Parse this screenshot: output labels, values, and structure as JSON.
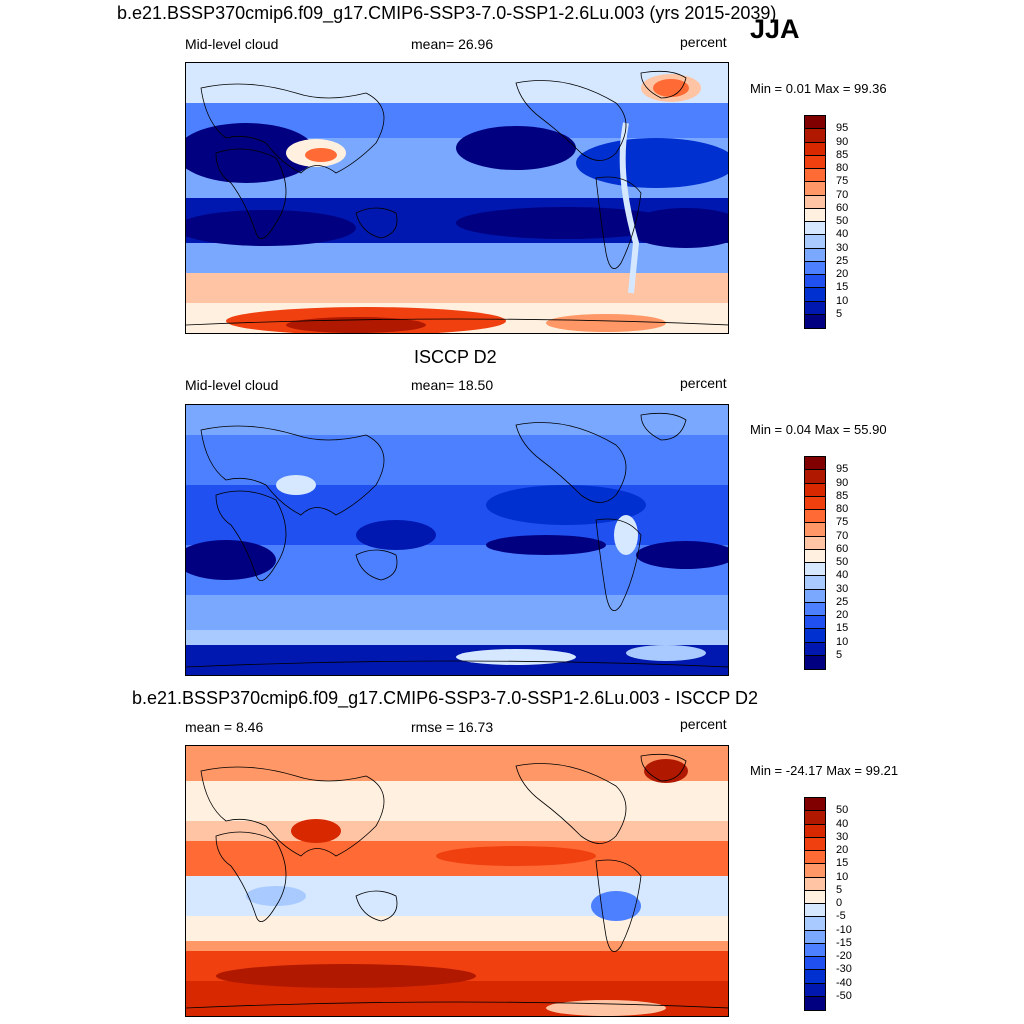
{
  "season": "JJA",
  "panels": [
    {
      "title": "b.e21.BSSP370cmip6.f09_g17.CMIP6-SSP3-7.0-SSP1-2.6Lu.003 (yrs 2015-2039)",
      "left_label": "Mid-level cloud",
      "center_label": "mean=  26.96",
      "right_label": "percent",
      "minmax": "Min =   0.01 Max =  99.36",
      "colorbar_labels": [
        "95",
        "90",
        "85",
        "80",
        "75",
        "70",
        "60",
        "50",
        "40",
        "30",
        "25",
        "20",
        "15",
        "10",
        "5"
      ],
      "colors": [
        "#800000",
        "#b01800",
        "#d82800",
        "#f04010",
        "#ff6a35",
        "#ff9866",
        "#ffc4a4",
        "#fff0e0",
        "#d6e8ff",
        "#a8caff",
        "#7aa8ff",
        "#4d80ff",
        "#2050f0",
        "#0030d0",
        "#0018b0",
        "#000080"
      ]
    },
    {
      "title": "ISCCP D2",
      "left_label": "Mid-level cloud",
      "center_label": "mean=  18.50",
      "right_label": "percent",
      "minmax": "Min =   0.04 Max =  55.90",
      "colorbar_labels": [
        "95",
        "90",
        "85",
        "80",
        "75",
        "70",
        "60",
        "50",
        "40",
        "30",
        "25",
        "20",
        "15",
        "10",
        "5"
      ],
      "colors": [
        "#800000",
        "#b01800",
        "#d82800",
        "#f04010",
        "#ff6a35",
        "#ff9866",
        "#ffc4a4",
        "#fff0e0",
        "#d6e8ff",
        "#a8caff",
        "#7aa8ff",
        "#4d80ff",
        "#2050f0",
        "#0030d0",
        "#0018b0",
        "#000080"
      ]
    },
    {
      "title": "b.e21.BSSP370cmip6.f09_g17.CMIP6-SSP3-7.0-SSP1-2.6Lu.003 - ISCCP D2",
      "left_label": "mean =   8.46",
      "center_label": "rmse =  16.73",
      "right_label": "percent",
      "minmax": "Min = -24.17 Max =  99.21",
      "colorbar_labels": [
        "50",
        "40",
        "30",
        "20",
        "15",
        "10",
        "5",
        "0",
        "-5",
        "-10",
        "-15",
        "-20",
        "-30",
        "-40",
        "-50"
      ],
      "colors": [
        "#800000",
        "#b01800",
        "#d82800",
        "#f04010",
        "#ff6a35",
        "#ff9866",
        "#ffc4a4",
        "#fff0e0",
        "#d6e8ff",
        "#a8caff",
        "#7aa8ff",
        "#4d80ff",
        "#2050f0",
        "#0030d0",
        "#0018b0",
        "#000080"
      ]
    }
  ]
}
